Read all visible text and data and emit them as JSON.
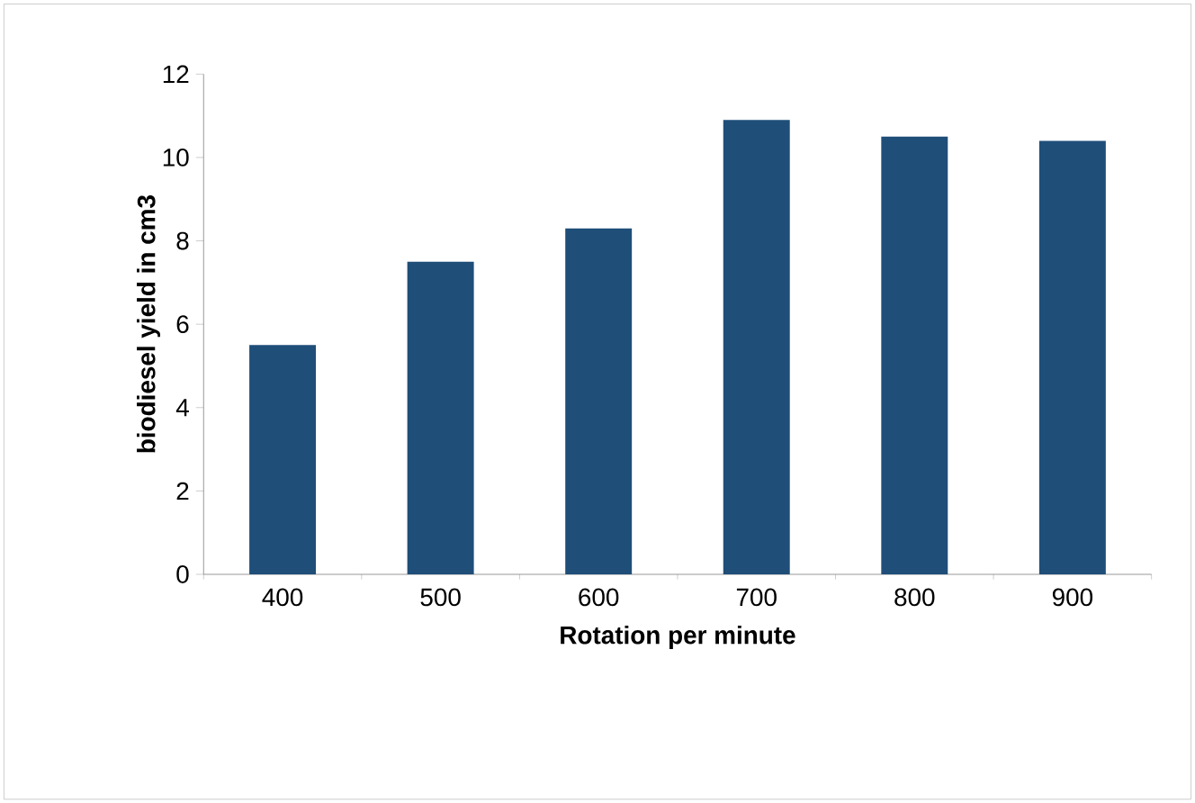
{
  "chart_data": {
    "type": "bar",
    "xlabel": "Rotation per minute",
    "ylabel": "biodiesel yield in cm3",
    "categories": [
      "400",
      "500",
      "600",
      "700",
      "800",
      "900"
    ],
    "values": [
      5.5,
      7.5,
      8.3,
      10.9,
      10.5,
      10.4
    ],
    "color": "#1f4e79",
    "ylim": [
      0,
      12
    ],
    "yticks": [
      0,
      2,
      4,
      6,
      8,
      10,
      12
    ]
  }
}
